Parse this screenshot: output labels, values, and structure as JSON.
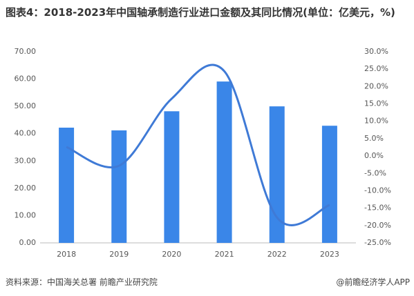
{
  "chart_data": {
    "type": "bar_line",
    "title": "图表4：2018-2023年中国轴承制造行业进口金额及其同比情况(单位：亿美元，%)",
    "categories": [
      "2018",
      "2019",
      "2020",
      "2021",
      "2022",
      "2023"
    ],
    "series": [
      {
        "type": "bar",
        "color": "#3a86e8",
        "values": [
          42.2,
          41.2,
          48.2,
          59.1,
          50.0,
          42.9
        ]
      },
      {
        "type": "line",
        "axis": "y2",
        "color": "#3f7ad6",
        "values": [
          2.6,
          -2.8,
          16.5,
          24.4,
          -17.7,
          -14.1
        ]
      }
    ],
    "ylim": [
      0,
      70
    ],
    "yticks": [
      {
        "value": 0,
        "label": "0.00"
      },
      {
        "value": 10,
        "label": "10.00"
      },
      {
        "value": 20,
        "label": "20.00"
      },
      {
        "value": 30,
        "label": "30.00"
      },
      {
        "value": 40,
        "label": "40.00"
      },
      {
        "value": 50,
        "label": "50.00"
      },
      {
        "value": 60,
        "label": "60.00"
      },
      {
        "value": 70,
        "label": "70.00"
      }
    ],
    "y2lim": [
      -25,
      30
    ],
    "y2ticks": [
      {
        "value": -25,
        "label": "-25.0%"
      },
      {
        "value": -20,
        "label": "-20.0%"
      },
      {
        "value": -15,
        "label": "-15.0%"
      },
      {
        "value": -10,
        "label": "-10.0%"
      },
      {
        "value": -5,
        "label": "-5.0%"
      },
      {
        "value": 0,
        "label": "0.0%"
      },
      {
        "value": 5,
        "label": "5.0%"
      },
      {
        "value": 10,
        "label": "10.0%"
      },
      {
        "value": 15,
        "label": "15.0%"
      },
      {
        "value": 20,
        "label": "20.0%"
      },
      {
        "value": 25,
        "label": "25.0%"
      },
      {
        "value": 30,
        "label": "30.0%"
      }
    ],
    "grid": false,
    "source": "资料来源：中国海关总署 前瞻产业研究院",
    "credit": "@前瞻经济学人APP"
  }
}
